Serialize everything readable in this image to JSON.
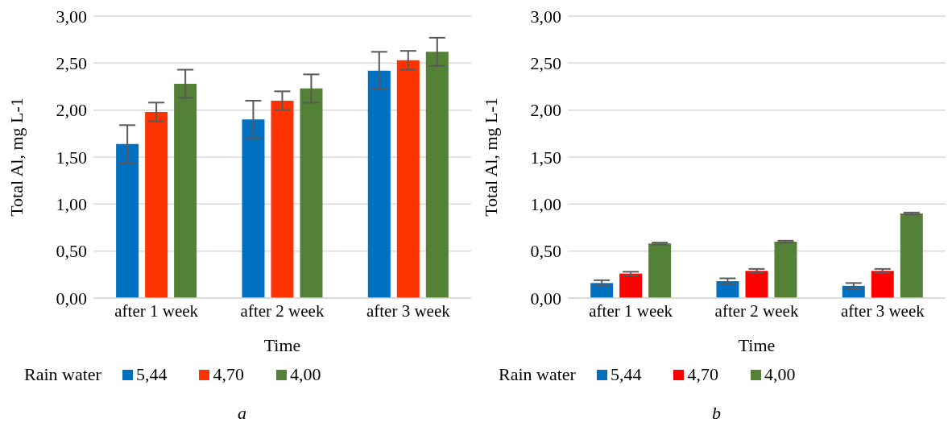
{
  "chart_data": [
    {
      "type": "bar",
      "xlabel": "Time",
      "ylabel": "Total Al, mg L-1",
      "legend_title": "Rain water",
      "legend": "bottom",
      "grid": "y",
      "annotations": [
        "a"
      ],
      "categories": [
        "after 1 week",
        "after 2 week",
        "after 3 week"
      ],
      "ylim": [
        0,
        3
      ],
      "yticks": [
        {
          "value": 0,
          "label": "0,00"
        },
        {
          "value": 0.5,
          "label": "0,50"
        },
        {
          "value": 1,
          "label": "1,00"
        },
        {
          "value": 1.5,
          "label": "1,50"
        },
        {
          "value": 2,
          "label": "2,00"
        },
        {
          "value": 2.5,
          "label": "2,50"
        },
        {
          "value": 3,
          "label": "3,00"
        }
      ],
      "series": [
        {
          "name": "5,44",
          "color": "#0070c0",
          "values": [
            1.64,
            1.9,
            2.42
          ],
          "errors": [
            0.2,
            0.2,
            0.2
          ]
        },
        {
          "name": "4,70",
          "color": "#ff3300",
          "values": [
            1.98,
            2.1,
            2.53
          ],
          "errors": [
            0.1,
            0.1,
            0.1
          ]
        },
        {
          "name": "4,00",
          "color": "#538135",
          "values": [
            2.28,
            2.23,
            2.62
          ],
          "errors": [
            0.15,
            0.15,
            0.15
          ]
        }
      ]
    },
    {
      "type": "bar",
      "xlabel": "Time",
      "ylabel": "Total Al, mg L-1",
      "legend_title": "Rain water",
      "legend": "bottom",
      "grid": "y",
      "annotations": [
        "b"
      ],
      "categories": [
        "after 1 week",
        "after 2 week",
        "after 3 week"
      ],
      "ylim": [
        0,
        3
      ],
      "yticks": [
        {
          "value": 0,
          "label": "0,00"
        },
        {
          "value": 0.5,
          "label": "0,50"
        },
        {
          "value": 1,
          "label": "1,00"
        },
        {
          "value": 1.5,
          "label": "1,50"
        },
        {
          "value": 2,
          "label": "2,00"
        },
        {
          "value": 2.5,
          "label": "2,50"
        },
        {
          "value": 3,
          "label": "3,00"
        }
      ],
      "series": [
        {
          "name": "5,44",
          "color": "#0070c0",
          "values": [
            0.16,
            0.18,
            0.13
          ],
          "errors": [
            0.03,
            0.03,
            0.03
          ]
        },
        {
          "name": "4,70",
          "color": "#ff0000",
          "values": [
            0.26,
            0.29,
            0.29
          ],
          "errors": [
            0.02,
            0.02,
            0.02
          ]
        },
        {
          "name": "4,00",
          "color": "#538135",
          "values": [
            0.58,
            0.6,
            0.9
          ],
          "errors": [
            0.01,
            0.01,
            0.01
          ]
        }
      ]
    }
  ]
}
